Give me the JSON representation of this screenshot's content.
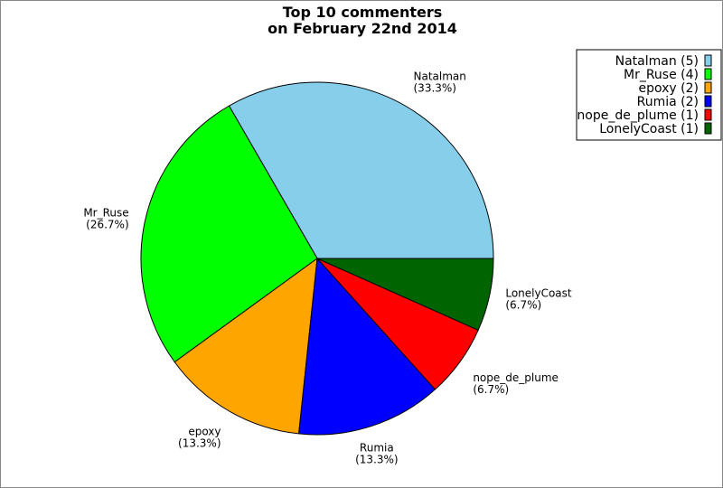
{
  "chart_data": {
    "type": "pie",
    "title": [
      "Top 10 commenters",
      "on February 22nd 2014"
    ],
    "start_angle_deg": 0,
    "direction": "counterclockwise",
    "slices": [
      {
        "label": "Natalman",
        "value": 5,
        "percent": "33.3%",
        "color": "#87ceeb",
        "legend": "Natalman (5)"
      },
      {
        "label": "Mr_Ruse",
        "value": 4,
        "percent": "26.7%",
        "color": "#00ff00",
        "legend": "Mr_Ruse (4)"
      },
      {
        "label": "epoxy",
        "value": 2,
        "percent": "13.3%",
        "color": "#ffa500",
        "legend": "epoxy (2)"
      },
      {
        "label": "Rumia",
        "value": 2,
        "percent": "13.3%",
        "color": "#0000ff",
        "legend": "Rumia (2)"
      },
      {
        "label": "nope_de_plume",
        "value": 1,
        "percent": "6.7%",
        "color": "#ff0000",
        "legend": "nope_de_plume (1)"
      },
      {
        "label": "LonelyCoast",
        "value": 1,
        "percent": "6.7%",
        "color": "#006400",
        "legend": "LonelyCoast (1)"
      }
    ],
    "legend_position": "top-right"
  }
}
